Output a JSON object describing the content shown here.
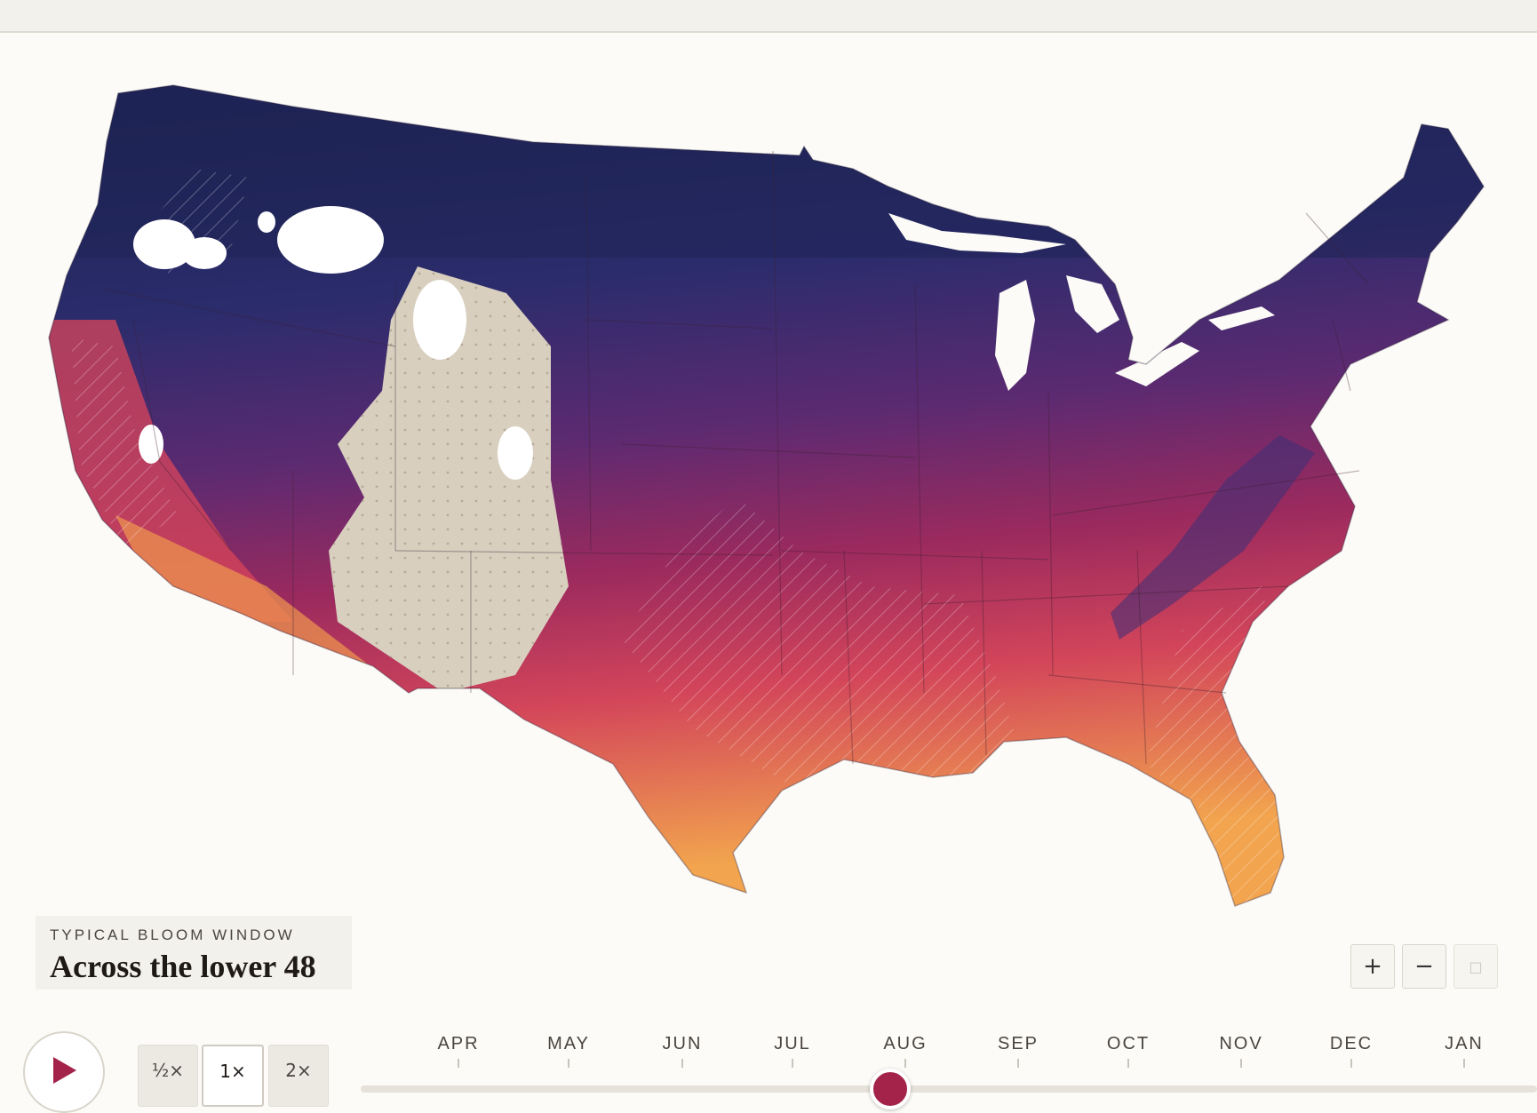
{
  "legend": {
    "eyebrow": "TYPICAL BLOOM WINDOW",
    "title": "Across the lower 48"
  },
  "zoom": {
    "in_label": "+",
    "out_label": "−",
    "reset_label": "□"
  },
  "playback": {
    "speeds": [
      {
        "label": "½×",
        "active": false
      },
      {
        "label": "1×",
        "active": true
      },
      {
        "label": "2×",
        "active": false
      }
    ]
  },
  "timeline": {
    "months": [
      "APR",
      "MAY",
      "JUN",
      "JUL",
      "AUG",
      "SEP",
      "OCT",
      "NOV",
      "DEC",
      "JAN"
    ],
    "progress": 0.45
  },
  "colors": {
    "background": "#fcfbf7",
    "accent": "#a3234a",
    "ramp": [
      "#1e2354",
      "#2e2f6f",
      "#5c2a71",
      "#9b2a5e",
      "#d3455a",
      "#f2a44e"
    ],
    "no_data": "#d8cfbf",
    "snow": "#ffffff"
  },
  "icons": {
    "play": "play-icon"
  }
}
